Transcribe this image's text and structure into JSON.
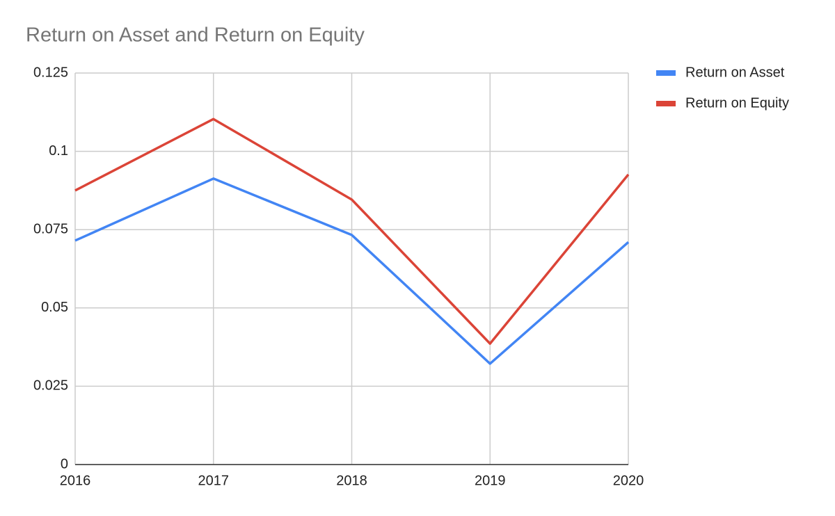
{
  "chart_data": {
    "type": "line",
    "title": "Return on Asset and Return on Equity",
    "x": [
      2016,
      2017,
      2018,
      2019,
      2020
    ],
    "xlim": [
      2016,
      2020
    ],
    "xticks": [
      2016,
      2017,
      2018,
      2019,
      2020
    ],
    "ylim": [
      0,
      0.125
    ],
    "yticks": [
      0,
      0.025,
      0.05,
      0.075,
      0.1,
      0.125
    ],
    "grid": true,
    "legend": "right",
    "series": [
      {
        "name": "Return on Asset",
        "color": "#4285f4",
        "values": [
          0.0715,
          0.0913,
          0.0733,
          0.0322,
          0.071
        ]
      },
      {
        "name": "Return on Equity",
        "color": "#db4437",
        "values": [
          0.0875,
          0.1103,
          0.0846,
          0.0386,
          0.0926
        ]
      }
    ]
  }
}
